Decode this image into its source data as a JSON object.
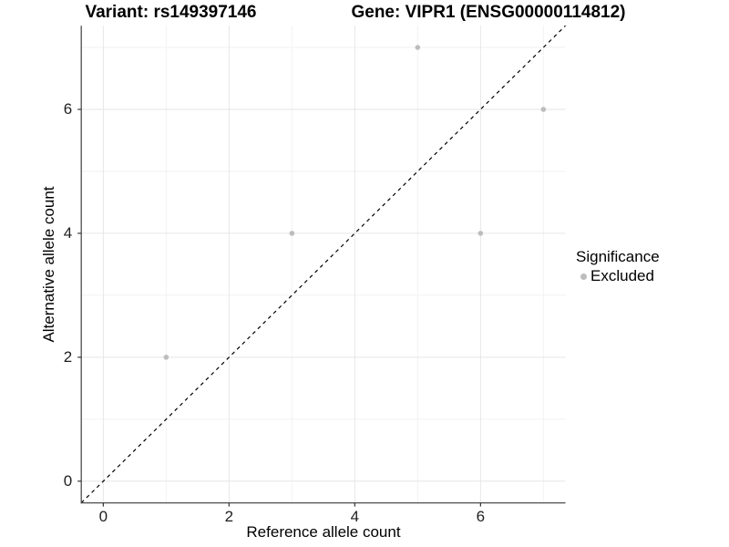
{
  "titles": {
    "variant": "Variant: rs149397146",
    "gene": "Gene: VIPR1 (ENSG00000114812)"
  },
  "chart_data": {
    "type": "scatter",
    "xlabel": "Reference allele count",
    "ylabel": "Alternative allele count",
    "xlim": [
      -0.35,
      7.35
    ],
    "ylim": [
      -0.35,
      7.35
    ],
    "x_breaks": [
      0,
      2,
      4,
      6
    ],
    "y_breaks": [
      0,
      2,
      4,
      6
    ],
    "x_tick_labels": [
      "0",
      "2",
      "4",
      "6"
    ],
    "y_tick_labels": [
      "0",
      "2",
      "4",
      "6"
    ],
    "x_minor_breaks": [
      1,
      3,
      5,
      7
    ],
    "y_minor_breaks": [
      1,
      3,
      5,
      7
    ],
    "grid": true,
    "identity_line": {
      "style": "dashed",
      "color": "#000000",
      "from": [
        -0.35,
        -0.35
      ],
      "to": [
        7.35,
        7.35
      ]
    },
    "series": [
      {
        "name": "Excluded",
        "color": "#bdbdbd",
        "points": [
          [
            1,
            2
          ],
          [
            3,
            4
          ],
          [
            5,
            7
          ],
          [
            6,
            4
          ],
          [
            7,
            6
          ]
        ]
      }
    ],
    "legend": {
      "title": "Significance",
      "position": "right",
      "entries": [
        {
          "label": "Excluded",
          "color": "#bdbdbd"
        }
      ]
    },
    "colors": {
      "axis_line": "#4d4d4d",
      "tick_mark": "#333333",
      "grid_major": "#e6e6e6",
      "grid_minor": "#f2f2f2",
      "point": "#bdbdbd",
      "background": "#ffffff"
    }
  }
}
